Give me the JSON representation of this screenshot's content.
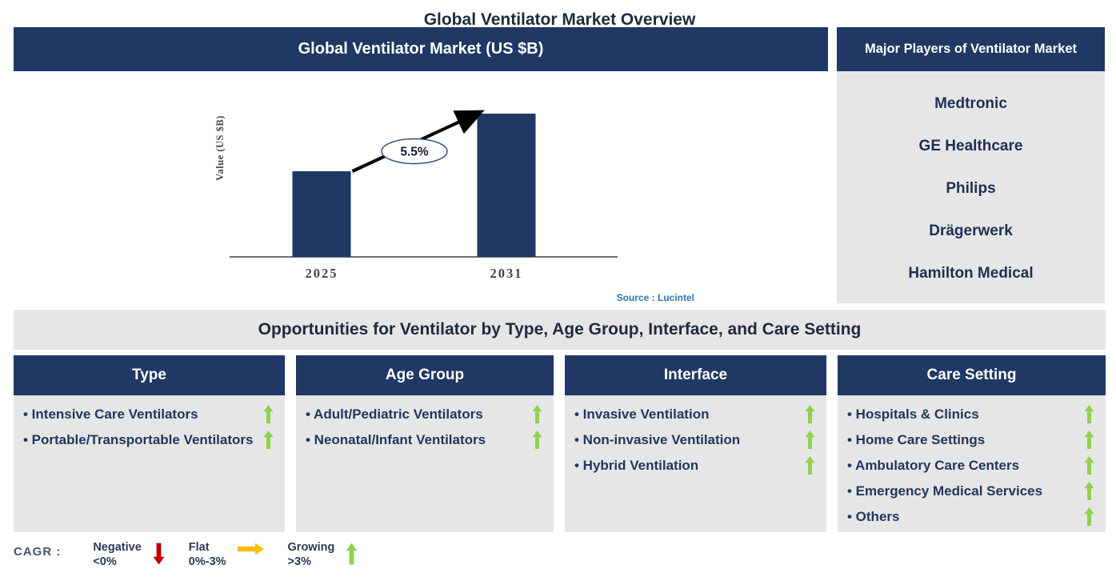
{
  "page_title": "Global Ventilator Market Overview",
  "market_panel": {
    "title": "Global Ventilator Market (US $B)",
    "source": "Source : Lucintel"
  },
  "chart_data": {
    "type": "bar",
    "title": "Global Ventilator Market (US $B)",
    "categories": [
      "2025",
      "2031"
    ],
    "values_relative": [
      0.6,
      1.0
    ],
    "values_note": "bars unlabeled; 2031 bar ~1.67x the 2025 bar",
    "annotation": "5.5%",
    "xlabel": "",
    "ylabel": "Value (US $B)",
    "bar_color": "#1F3864",
    "legend_position": "none",
    "grid": false
  },
  "major_players": {
    "title": "Major Players of Ventilator Market",
    "players": [
      "Medtronic",
      "GE Healthcare",
      "Philips",
      "Drägerwerk",
      "Hamilton Medical"
    ]
  },
  "opportunities": {
    "headline": "Opportunities for Ventilator by Type, Age Group, Interface, and Care Setting",
    "columns": [
      {
        "title": "Type",
        "items": [
          {
            "label": "Intensive Care Ventilators",
            "trend": "up"
          },
          {
            "label": "Portable/Transportable Ventilators",
            "trend": "up"
          }
        ]
      },
      {
        "title": "Age Group",
        "items": [
          {
            "label": "Adult/Pediatric Ventilators",
            "trend": "up"
          },
          {
            "label": "Neonatal/Infant Ventilators",
            "trend": "up"
          }
        ]
      },
      {
        "title": "Interface",
        "items": [
          {
            "label": "Invasive Ventilation",
            "trend": "up"
          },
          {
            "label": "Non-invasive Ventilation",
            "trend": "up"
          },
          {
            "label": "Hybrid Ventilation",
            "trend": "up"
          }
        ]
      },
      {
        "title": "Care Setting",
        "items": [
          {
            "label": "Hospitals & Clinics",
            "trend": "up"
          },
          {
            "label": "Home Care Settings",
            "trend": "up"
          },
          {
            "label": "Ambulatory Care Centers",
            "trend": "up"
          },
          {
            "label": "Emergency Medical Services",
            "trend": "up"
          },
          {
            "label": "Others",
            "trend": "up"
          }
        ]
      }
    ]
  },
  "legend": {
    "prefix": "CAGR :",
    "items": [
      {
        "label": "Negative",
        "range": "<0%",
        "direction": "down",
        "color": "#C00000"
      },
      {
        "label": "Flat",
        "range": "0%-3%",
        "direction": "right",
        "color": "#FFC000"
      },
      {
        "label": "Growing",
        "range": ">3%",
        "direction": "up",
        "color": "#92D050"
      }
    ]
  },
  "colors": {
    "navy": "#1F3864",
    "panel_gray": "#E7E6E6",
    "growing_green": "#92D050",
    "negative_red": "#C00000",
    "flat_yellow": "#FFC000",
    "source_blue": "#2E74B5",
    "axis_text": "#44464F"
  }
}
